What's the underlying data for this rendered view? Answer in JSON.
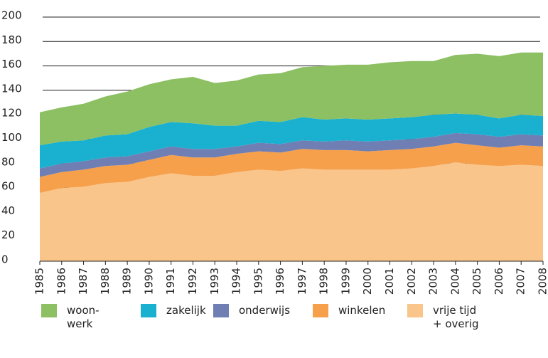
{
  "chart_data": {
    "type": "stacked_area",
    "x": [
      1985,
      1986,
      1987,
      1988,
      1989,
      1990,
      1991,
      1992,
      1993,
      1994,
      1995,
      1996,
      1997,
      1998,
      1999,
      2000,
      2001,
      2002,
      2003,
      2004,
      2005,
      2006,
      2007,
      2008
    ],
    "xlim": [
      1985,
      2008
    ],
    "xticks": [
      1985,
      1986,
      1987,
      1988,
      1989,
      1990,
      1991,
      1992,
      1993,
      1994,
      1995,
      1996,
      1997,
      1998,
      1999,
      2000,
      2001,
      2002,
      2003,
      2004,
      2005,
      2006,
      2007,
      2008
    ],
    "ylim": [
      0,
      200
    ],
    "yticks": [
      0,
      20,
      40,
      60,
      80,
      100,
      120,
      140,
      160,
      180,
      200
    ],
    "grid": true,
    "series": [
      {
        "name": "vrije tijd\n+ overig",
        "color": "#f9c58a",
        "values": [
          56,
          60,
          61,
          64,
          65,
          69,
          72,
          70,
          70,
          73,
          75,
          74,
          76,
          75,
          75,
          75,
          75,
          76,
          78,
          81,
          79,
          78,
          79,
          78
        ]
      },
      {
        "name": "winkelen",
        "color": "#f6a04c",
        "values": [
          13,
          13,
          14,
          14,
          14,
          14,
          15,
          15,
          15,
          15,
          15,
          15,
          16,
          16,
          16,
          15,
          16,
          16,
          16,
          16,
          16,
          15,
          16,
          16
        ]
      },
      {
        "name": "onderwijs",
        "color": "#6f7fb4",
        "values": [
          7,
          7,
          7,
          7,
          7,
          7,
          7,
          7,
          7,
          6,
          7,
          7,
          7,
          7,
          8,
          8,
          8,
          8,
          8,
          8,
          9,
          9,
          9,
          9
        ]
      },
      {
        "name": "zakelijk",
        "color": "#1ab0d0",
        "values": [
          19,
          18,
          17,
          18,
          18,
          20,
          20,
          21,
          19,
          17,
          18,
          18,
          19,
          18,
          18,
          18,
          18,
          18,
          18,
          16,
          16,
          15,
          16,
          16
        ]
      },
      {
        "name": "woon-\nwerk",
        "color": "#8cc063",
        "values": [
          27,
          28,
          30,
          32,
          35,
          35,
          35,
          38,
          35,
          37,
          38,
          40,
          41,
          44,
          44,
          45,
          46,
          46,
          44,
          48,
          50,
          51,
          51,
          52
        ]
      }
    ]
  }
}
